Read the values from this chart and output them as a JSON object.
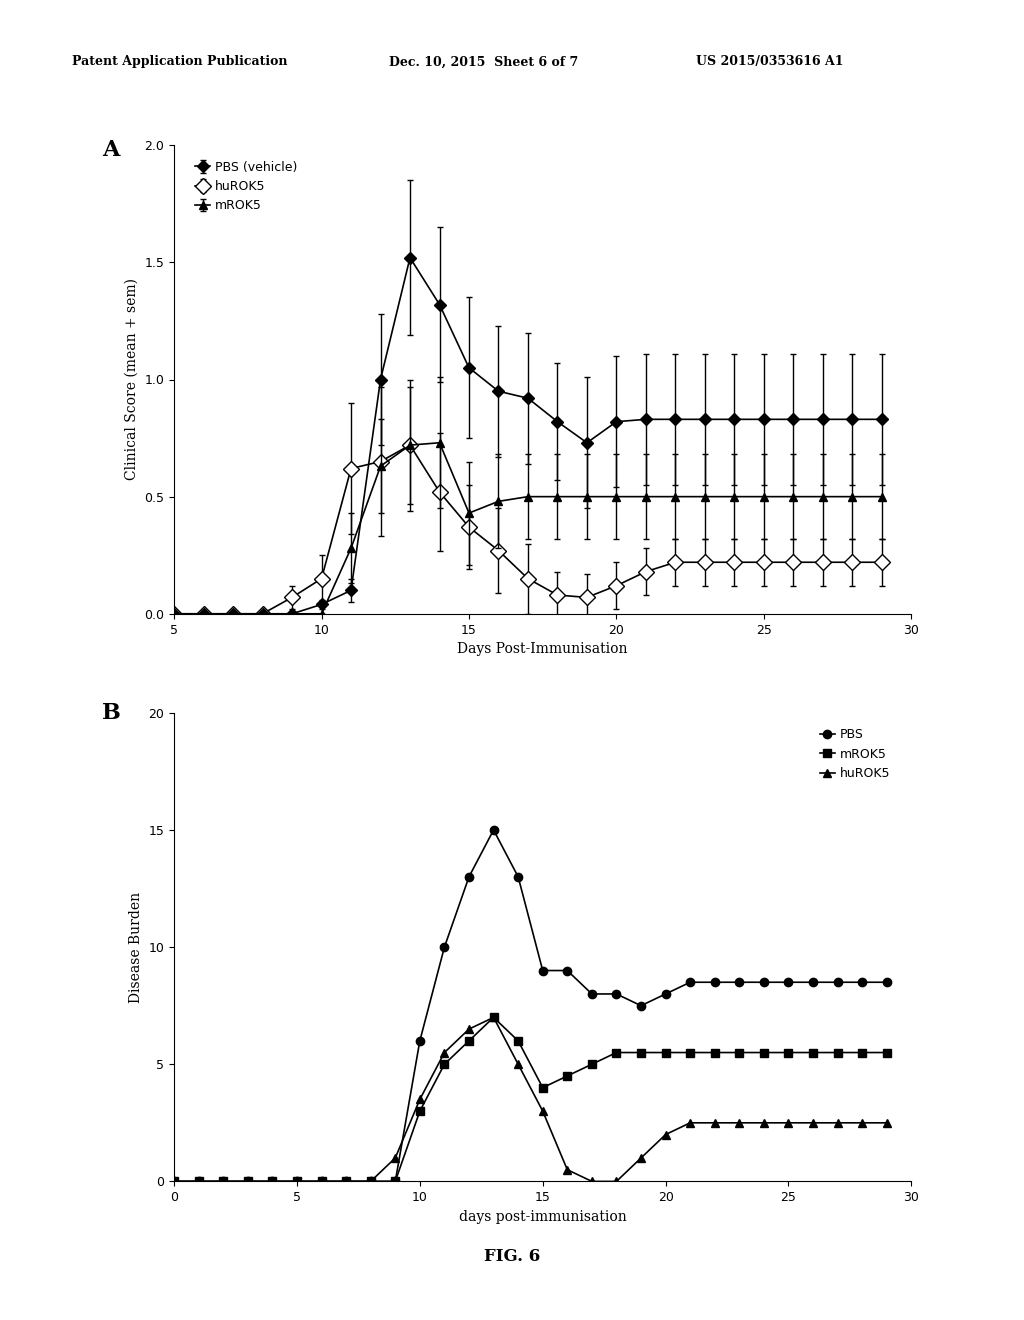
{
  "header_left": "Patent Application Publication",
  "header_center": "Dec. 10, 2015  Sheet 6 of 7",
  "header_right": "US 2015/0353616 A1",
  "fig_label": "FIG. 6",
  "panel_A": {
    "label": "A",
    "xlabel": "Days Post-Immunisation",
    "ylabel": "Clinical Score (mean + sem)",
    "xlim": [
      5,
      30
    ],
    "ylim": [
      0.0,
      2.0
    ],
    "xticks": [
      5,
      10,
      15,
      20,
      25,
      30
    ],
    "yticks": [
      0.0,
      0.5,
      1.0,
      1.5,
      2.0
    ],
    "PBS": {
      "label": "PBS (vehicle)",
      "x": [
        5,
        6,
        7,
        8,
        9,
        10,
        11,
        12,
        13,
        14,
        15,
        16,
        17,
        18,
        19,
        20,
        21,
        22,
        23,
        24,
        25,
        26,
        27,
        28,
        29
      ],
      "y": [
        0.0,
        0.0,
        0.0,
        0.0,
        0.0,
        0.04,
        0.1,
        1.0,
        1.52,
        1.32,
        1.05,
        0.95,
        0.92,
        0.82,
        0.73,
        0.82,
        0.83,
        0.83,
        0.83,
        0.83,
        0.83,
        0.83,
        0.83,
        0.83,
        0.83
      ],
      "yerr": [
        0.0,
        0.0,
        0.0,
        0.0,
        0.0,
        0.02,
        0.05,
        0.28,
        0.33,
        0.33,
        0.3,
        0.28,
        0.28,
        0.25,
        0.28,
        0.28,
        0.28,
        0.28,
        0.28,
        0.28,
        0.28,
        0.28,
        0.28,
        0.28,
        0.28
      ],
      "marker": "D",
      "color": "black",
      "filled": true
    },
    "huROK5": {
      "label": "huROK5",
      "x": [
        5,
        6,
        7,
        8,
        9,
        10,
        11,
        12,
        13,
        14,
        15,
        16,
        17,
        18,
        19,
        20,
        21,
        22,
        23,
        24,
        25,
        26,
        27,
        28,
        29
      ],
      "y": [
        0.0,
        0.0,
        0.0,
        0.0,
        0.07,
        0.15,
        0.62,
        0.65,
        0.72,
        0.52,
        0.37,
        0.27,
        0.15,
        0.08,
        0.07,
        0.12,
        0.18,
        0.22,
        0.22,
        0.22,
        0.22,
        0.22,
        0.22,
        0.22,
        0.22
      ],
      "yerr": [
        0.0,
        0.0,
        0.0,
        0.0,
        0.05,
        0.1,
        0.28,
        0.32,
        0.28,
        0.25,
        0.18,
        0.18,
        0.15,
        0.1,
        0.1,
        0.1,
        0.1,
        0.1,
        0.1,
        0.1,
        0.1,
        0.1,
        0.1,
        0.1,
        0.1
      ],
      "marker": "D",
      "color": "black",
      "filled": false
    },
    "mROK5": {
      "label": "mROK5",
      "x": [
        5,
        6,
        7,
        8,
        9,
        10,
        11,
        12,
        13,
        14,
        15,
        16,
        17,
        18,
        19,
        20,
        21,
        22,
        23,
        24,
        25,
        26,
        27,
        28,
        29
      ],
      "y": [
        0.0,
        0.0,
        0.0,
        0.0,
        0.0,
        0.0,
        0.28,
        0.63,
        0.72,
        0.73,
        0.43,
        0.48,
        0.5,
        0.5,
        0.5,
        0.5,
        0.5,
        0.5,
        0.5,
        0.5,
        0.5,
        0.5,
        0.5,
        0.5,
        0.5
      ],
      "yerr": [
        0.0,
        0.0,
        0.0,
        0.0,
        0.0,
        0.0,
        0.15,
        0.2,
        0.25,
        0.28,
        0.22,
        0.2,
        0.18,
        0.18,
        0.18,
        0.18,
        0.18,
        0.18,
        0.18,
        0.18,
        0.18,
        0.18,
        0.18,
        0.18,
        0.18
      ],
      "marker": "^",
      "color": "black",
      "filled": true
    }
  },
  "panel_B": {
    "label": "B",
    "xlabel": "days post-immunisation",
    "ylabel": "Disease Burden",
    "xlim": [
      0,
      30
    ],
    "ylim": [
      0,
      20
    ],
    "xticks": [
      0,
      5,
      10,
      15,
      20,
      25,
      30
    ],
    "yticks": [
      0,
      5,
      10,
      15,
      20
    ],
    "PBS": {
      "label": "PBS",
      "x": [
        0,
        1,
        2,
        3,
        4,
        5,
        6,
        7,
        8,
        9,
        10,
        11,
        12,
        13,
        14,
        15,
        16,
        17,
        18,
        19,
        20,
        21,
        22,
        23,
        24,
        25,
        26,
        27,
        28,
        29
      ],
      "y": [
        0,
        0,
        0,
        0,
        0,
        0,
        0,
        0,
        0,
        0,
        6,
        10,
        13,
        15,
        13,
        9,
        9,
        8,
        8,
        7.5,
        8,
        8.5,
        8.5,
        8.5,
        8.5,
        8.5,
        8.5,
        8.5,
        8.5,
        8.5
      ],
      "marker": "o",
      "color": "black",
      "filled": true
    },
    "mROK5": {
      "label": "mROK5",
      "x": [
        0,
        1,
        2,
        3,
        4,
        5,
        6,
        7,
        8,
        9,
        10,
        11,
        12,
        13,
        14,
        15,
        16,
        17,
        18,
        19,
        20,
        21,
        22,
        23,
        24,
        25,
        26,
        27,
        28,
        29
      ],
      "y": [
        0,
        0,
        0,
        0,
        0,
        0,
        0,
        0,
        0,
        0,
        3,
        5,
        6,
        7,
        6,
        4,
        4.5,
        5,
        5.5,
        5.5,
        5.5,
        5.5,
        5.5,
        5.5,
        5.5,
        5.5,
        5.5,
        5.5,
        5.5,
        5.5
      ],
      "marker": "s",
      "color": "black",
      "filled": true
    },
    "huROK5": {
      "label": "huROK5",
      "x": [
        0,
        1,
        2,
        3,
        4,
        5,
        6,
        7,
        8,
        9,
        10,
        11,
        12,
        13,
        14,
        15,
        16,
        17,
        18,
        19,
        20,
        21,
        22,
        23,
        24,
        25,
        26,
        27,
        28,
        29
      ],
      "y": [
        0,
        0,
        0,
        0,
        0,
        0,
        0,
        0,
        0,
        1,
        3.5,
        5.5,
        6.5,
        7,
        5,
        3,
        0.5,
        0,
        0,
        1,
        2,
        2.5,
        2.5,
        2.5,
        2.5,
        2.5,
        2.5,
        2.5,
        2.5,
        2.5
      ],
      "marker": "^",
      "color": "black",
      "filled": true
    }
  },
  "background_color": "#ffffff",
  "text_color": "#000000"
}
